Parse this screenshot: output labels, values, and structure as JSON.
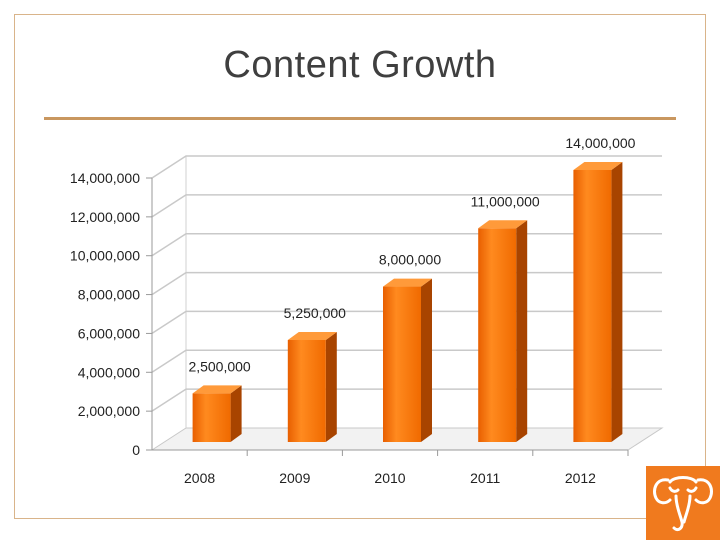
{
  "slide": {
    "title": "Content Growth"
  },
  "logo": {
    "icon": "elephant-icon",
    "color": "#f07a1e"
  },
  "chart_data": {
    "type": "bar",
    "title": "",
    "xlabel": "",
    "ylabel": "",
    "categories": [
      "2008",
      "2009",
      "2010",
      "2011",
      "2012"
    ],
    "values": [
      2500000,
      5250000,
      8000000,
      11000000,
      14000000
    ],
    "data_labels": [
      "2,500,000",
      "5,250,000",
      "8,000,000",
      "11,000,000",
      "14,000,000"
    ],
    "ylim": [
      0,
      14000000
    ],
    "yticks": [
      0,
      2000000,
      4000000,
      6000000,
      8000000,
      10000000,
      12000000,
      14000000
    ],
    "ytick_labels": [
      "0",
      "2,000,000",
      "4,000,000",
      "6,000,000",
      "8,000,000",
      "10,000,000",
      "12,000,000",
      "14,000,000"
    ],
    "grid": true,
    "style": "3d",
    "bar_color": "#f47a0c"
  }
}
